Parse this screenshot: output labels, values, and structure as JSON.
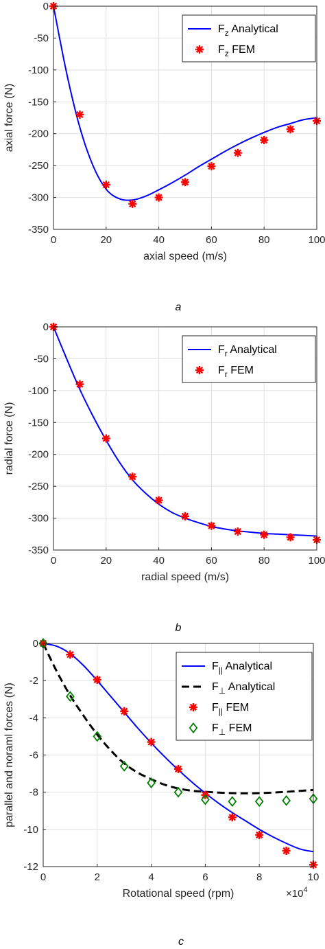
{
  "chart_data": [
    {
      "type": "line",
      "panel_label": "a",
      "xlabel": "axial speed (m/s)",
      "ylabel": "axial force (N)",
      "xlim": [
        0,
        100
      ],
      "ylim": [
        -350,
        0
      ],
      "xticks": [
        "0",
        "20",
        "40",
        "60",
        "80",
        "100"
      ],
      "yticks": [
        "0",
        "-50",
        "-100",
        "-150",
        "-200",
        "-250",
        "-300",
        "-350"
      ],
      "grid": true,
      "legend_position": "top-right",
      "legend": [
        {
          "main": "F",
          "sub": "z",
          "rest": " Analytical",
          "style": "line"
        },
        {
          "main": "F",
          "sub": "z",
          "rest": " FEM",
          "style": "star"
        }
      ],
      "series": [
        {
          "style": "line",
          "color": "#0000ff",
          "x": [
            0,
            5,
            10,
            15,
            20,
            25,
            30,
            35,
            40,
            45,
            50,
            55,
            60,
            65,
            70,
            75,
            80,
            85,
            90,
            95,
            100
          ],
          "y": [
            0,
            -105,
            -190,
            -250,
            -287,
            -302,
            -304,
            -298,
            -288,
            -277,
            -265,
            -252,
            -240,
            -228,
            -217,
            -207,
            -198,
            -190,
            -184,
            -178,
            -175
          ]
        },
        {
          "style": "star",
          "color": "#ff0000",
          "x": [
            0,
            10,
            20,
            30,
            40,
            50,
            60,
            70,
            80,
            90,
            100
          ],
          "y": [
            0,
            -170,
            -280,
            -310,
            -300,
            -276,
            -251,
            -230,
            -210,
            -193,
            -180
          ]
        }
      ]
    },
    {
      "type": "line",
      "panel_label": "b",
      "xlabel": "radial speed (m/s)",
      "ylabel": "radial force (N)",
      "xlim": [
        0,
        100
      ],
      "ylim": [
        -350,
        0
      ],
      "xticks": [
        "0",
        "20",
        "40",
        "60",
        "80",
        "100"
      ],
      "yticks": [
        "0",
        "-50",
        "-100",
        "-150",
        "-200",
        "-250",
        "-300",
        "-350"
      ],
      "grid": true,
      "legend_position": "top-right",
      "legend": [
        {
          "main": "F",
          "sub": "r",
          "rest": " Analytical",
          "style": "line"
        },
        {
          "main": "F",
          "sub": "r",
          "rest": " FEM",
          "style": "star"
        }
      ],
      "series": [
        {
          "style": "line",
          "color": "#0000ff",
          "x": [
            0,
            5,
            10,
            15,
            20,
            25,
            30,
            35,
            40,
            45,
            50,
            55,
            60,
            65,
            70,
            75,
            80,
            85,
            90,
            95,
            100
          ],
          "y": [
            0,
            -50,
            -98,
            -140,
            -178,
            -212,
            -240,
            -261,
            -278,
            -291,
            -300,
            -307,
            -313,
            -317,
            -320,
            -322,
            -324,
            -325,
            -326,
            -327,
            -328
          ]
        },
        {
          "style": "star",
          "color": "#ff0000",
          "x": [
            0,
            10,
            20,
            30,
            40,
            50,
            60,
            70,
            80,
            90,
            100
          ],
          "y": [
            0,
            -90,
            -175,
            -235,
            -272,
            -297,
            -312,
            -321,
            -326,
            -330,
            -334
          ]
        }
      ]
    },
    {
      "type": "line",
      "panel_label": "c",
      "xlabel": "Rotational speed (rpm)",
      "ylabel": "parallel and noraml forces (N)",
      "x_multiplier_label": "×10",
      "x_multiplier_exp": "4",
      "xlim": [
        0,
        100000
      ],
      "ylim": [
        -12,
        0
      ],
      "xticks": [
        "0",
        "2",
        "4",
        "6",
        "8",
        "10"
      ],
      "yticks": [
        "0",
        "-2",
        "-4",
        "-6",
        "-8",
        "-10",
        "-12"
      ],
      "grid": true,
      "legend_position": "top-right",
      "legend": [
        {
          "main": "F",
          "sub": "||",
          "rest": " Analytical",
          "style": "line"
        },
        {
          "main": "F",
          "sub": "⊥",
          "rest": " Analytical",
          "style": "dash"
        },
        {
          "main": "F",
          "sub": "||",
          "rest": " FEM",
          "style": "star"
        },
        {
          "main": "F",
          "sub": "⊥",
          "rest": " FEM",
          "style": "diamond"
        }
      ],
      "series": [
        {
          "style": "line",
          "color": "#0000ff",
          "x": [
            0,
            5000,
            10000,
            15000,
            20000,
            25000,
            30000,
            35000,
            40000,
            45000,
            50000,
            55000,
            60000,
            65000,
            70000,
            75000,
            80000,
            85000,
            90000,
            95000,
            100000
          ],
          "y": [
            0,
            -0.15,
            -0.55,
            -1.2,
            -2.0,
            -2.85,
            -3.7,
            -4.55,
            -5.35,
            -6.1,
            -6.8,
            -7.45,
            -8.05,
            -8.6,
            -9.1,
            -9.55,
            -10.0,
            -10.4,
            -10.75,
            -11.05,
            -11.2
          ]
        },
        {
          "style": "dash",
          "color": "#000000",
          "x": [
            0,
            5000,
            10000,
            15000,
            20000,
            25000,
            30000,
            35000,
            40000,
            45000,
            50000,
            55000,
            60000,
            65000,
            70000,
            75000,
            80000,
            85000,
            90000,
            95000,
            100000
          ],
          "y": [
            0,
            -1.5,
            -2.8,
            -3.9,
            -4.9,
            -5.75,
            -6.45,
            -6.95,
            -7.3,
            -7.6,
            -7.8,
            -7.92,
            -7.98,
            -8.02,
            -8.05,
            -8.06,
            -8.05,
            -8.02,
            -7.98,
            -7.93,
            -7.88
          ]
        },
        {
          "style": "star",
          "color": "#ff0000",
          "x": [
            0,
            10000,
            20000,
            30000,
            40000,
            50000,
            60000,
            70000,
            80000,
            90000,
            100000
          ],
          "y": [
            0,
            -0.6,
            -1.95,
            -3.65,
            -5.3,
            -6.75,
            -8.15,
            -9.35,
            -10.3,
            -11.15,
            -11.9
          ]
        },
        {
          "style": "diamond",
          "color": "#008000",
          "x": [
            0,
            10000,
            20000,
            30000,
            40000,
            50000,
            60000,
            70000,
            80000,
            90000,
            100000
          ],
          "y": [
            0,
            -2.85,
            -5.0,
            -6.6,
            -7.5,
            -8.0,
            -8.4,
            -8.5,
            -8.5,
            -8.45,
            -8.35
          ]
        }
      ]
    }
  ]
}
